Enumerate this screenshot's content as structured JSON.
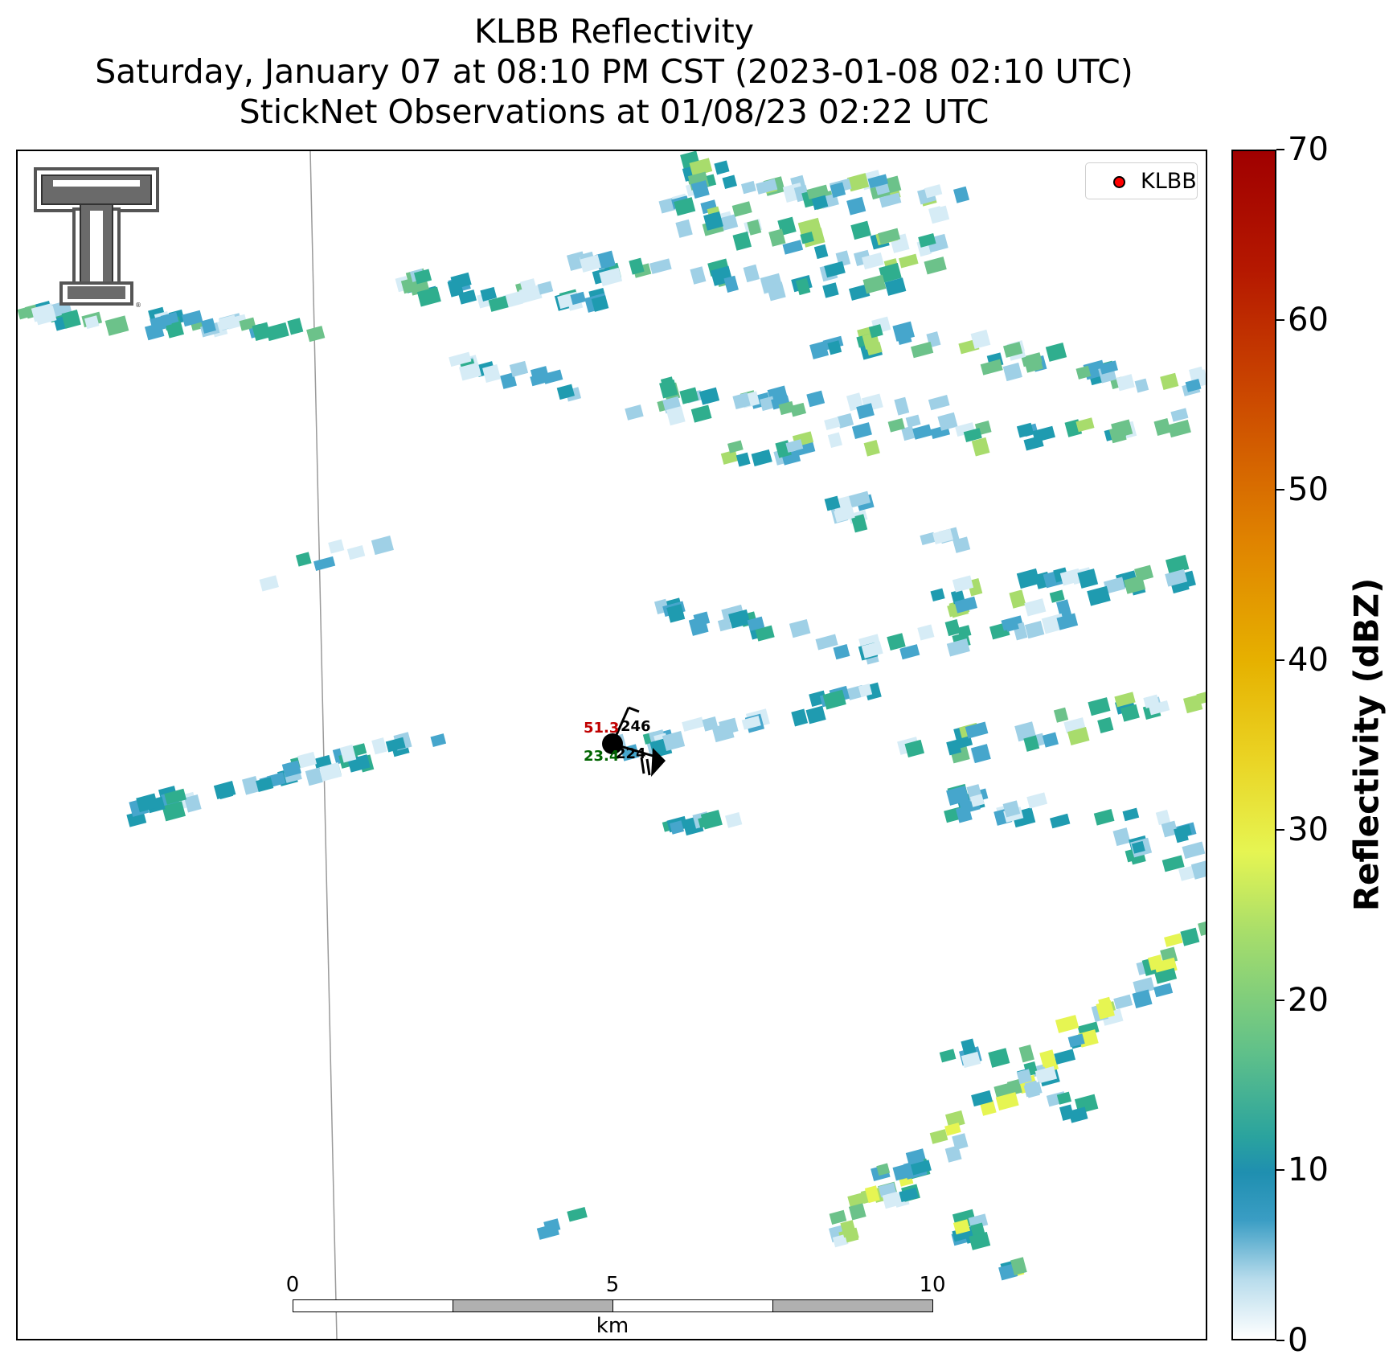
{
  "title": {
    "line1": "KLBB Reflectivity",
    "line2": "Saturday, January 07 at 08:10 PM CST (2023-01-08 02:10 UTC)",
    "line3": "StickNet Observations at 01/08/23 02:22 UTC"
  },
  "legend": {
    "label": "KLBB",
    "marker_color": "#ff0000"
  },
  "station": {
    "temperature": "51.3",
    "dewpoint": "23.4",
    "pressure_code": "246",
    "station_id": "224",
    "temperature_color": "#c00000",
    "dewpoint_color": "#006400"
  },
  "scalebar": {
    "tick_labels": [
      "0",
      "5",
      "10"
    ],
    "unit": "km",
    "segment_colors": [
      "#ffffff",
      "#b0b0b0",
      "#ffffff",
      "#b0b0b0"
    ]
  },
  "colorbar": {
    "title": "Reflectivity (dBZ)",
    "ticks": [
      "0",
      "10",
      "20",
      "30",
      "40",
      "50",
      "60",
      "70"
    ],
    "range": [
      0,
      70
    ]
  },
  "colors": {
    "very_light": "#d6ecf6",
    "light_blue": "#9fd0e6",
    "blue": "#46a6cc",
    "teal": "#1f9bb0",
    "teal_green": "#2fae8e",
    "green": "#6cc28a",
    "light_green": "#a8dc6c",
    "yellow_green": "#e6f552"
  },
  "icons": {
    "logo": "texas-tech-double-t-logo",
    "station": "station-model-wind-barb-icon"
  }
}
